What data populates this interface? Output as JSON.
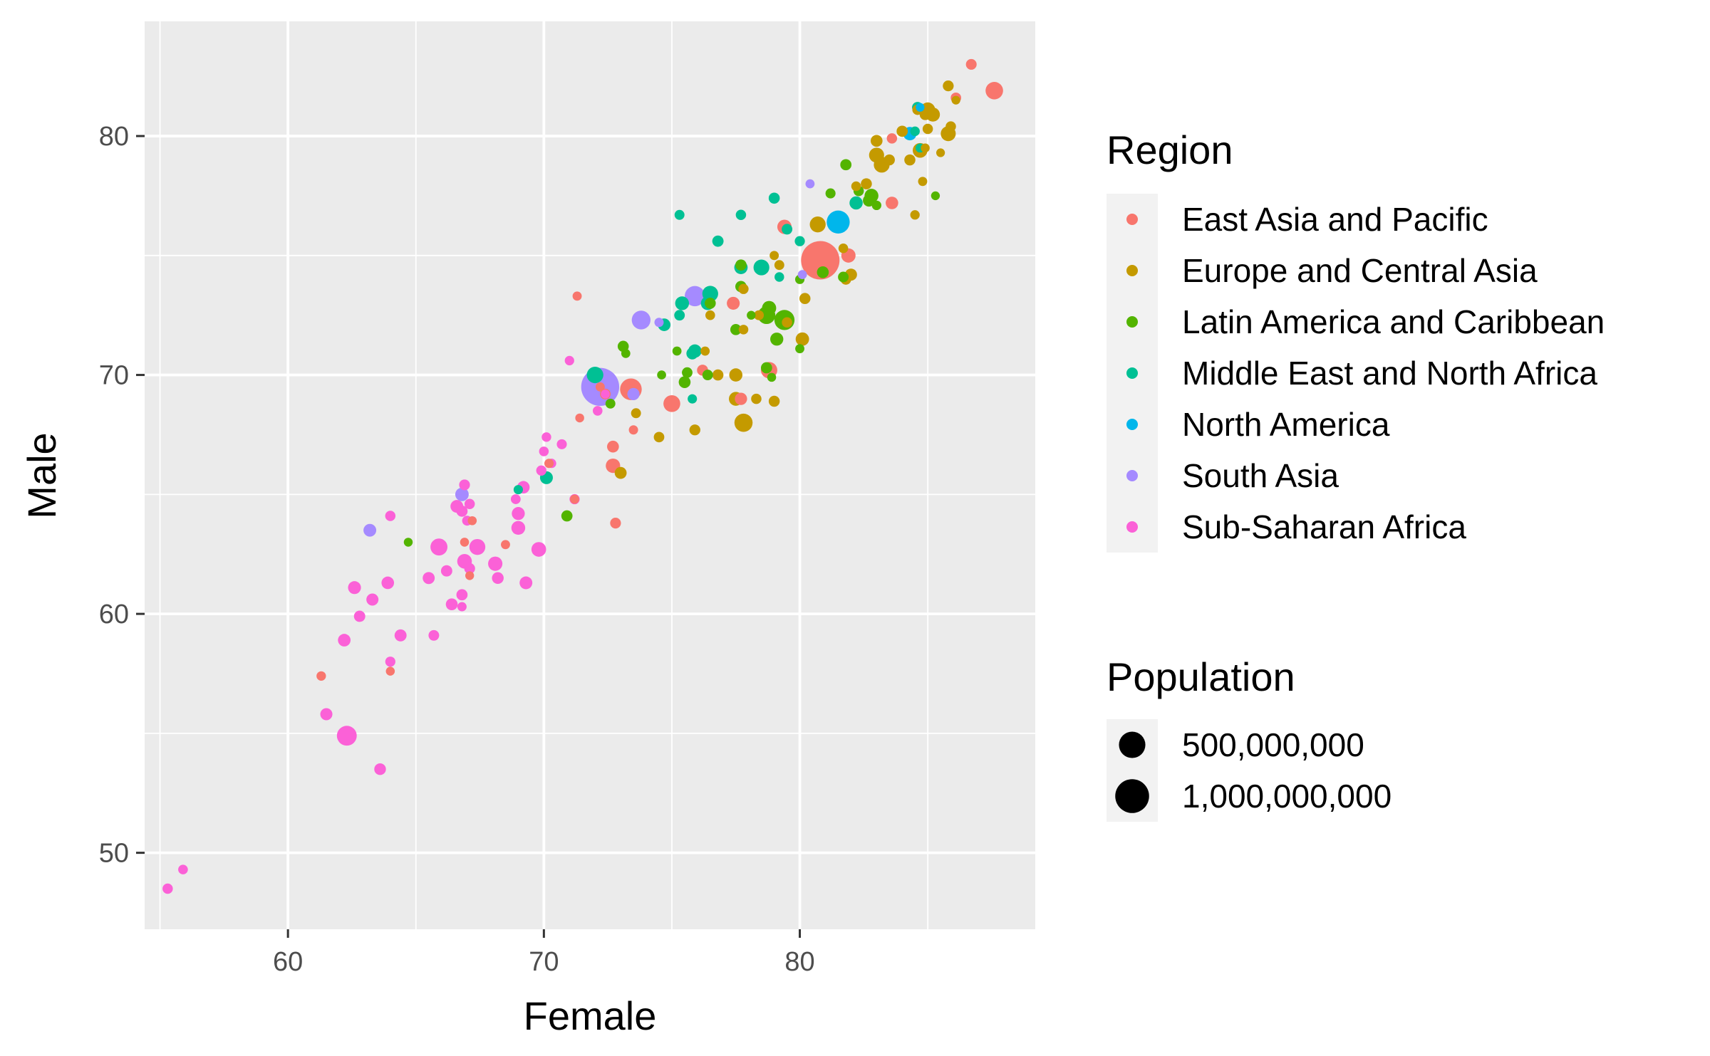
{
  "chart_data": {
    "type": "scatter",
    "title": "",
    "xlabel": "Female",
    "ylabel": "Male",
    "xlim": [
      54.4,
      89.2
    ],
    "ylim": [
      46.8,
      84.8
    ],
    "xticks": [
      60,
      70,
      80
    ],
    "yticks": [
      50,
      60,
      70,
      80
    ],
    "grid": true,
    "legend_position": "right",
    "color_legend": {
      "title": "Region",
      "entries": [
        {
          "name": "East Asia and Pacific",
          "color": "#F8766D"
        },
        {
          "name": "Europe and Central Asia",
          "color": "#C49A00"
        },
        {
          "name": "Latin America and Caribbean",
          "color": "#53B400"
        },
        {
          "name": "Middle East and North Africa",
          "color": "#00C094"
        },
        {
          "name": "North America",
          "color": "#00B6EB"
        },
        {
          "name": "South Asia",
          "color": "#A58AFF"
        },
        {
          "name": "Sub-Saharan Africa",
          "color": "#FB61D7"
        }
      ]
    },
    "size_legend": {
      "title": "Population",
      "entries": [
        {
          "label": "500,000,000",
          "value": 500000000
        },
        {
          "label": "1,000,000,000",
          "value": 1000000000
        }
      ]
    },
    "series": [
      {
        "region": "East Asia and Pacific",
        "points": [
          [
            80.8,
            74.8,
            1400000000
          ],
          [
            87.6,
            81.9,
            126000000
          ],
          [
            86.7,
            83.0,
            7500000
          ],
          [
            79.4,
            76.2,
            52000000
          ],
          [
            78.8,
            70.2,
            96000000
          ],
          [
            81.9,
            75.0,
            51000000
          ],
          [
            75.0,
            68.8,
            108000000
          ],
          [
            73.4,
            69.4,
            270000000
          ],
          [
            72.7,
            66.2,
            54000000
          ],
          [
            72.7,
            67.0,
            17000000
          ],
          [
            77.7,
            69.0,
            22000000
          ],
          [
            76.2,
            70.2,
            10000000
          ],
          [
            77.4,
            73.0,
            30000000
          ],
          [
            71.3,
            73.3,
            600000
          ],
          [
            72.4,
            69.2,
            7000000
          ],
          [
            71.2,
            64.8,
            500000
          ],
          [
            72.8,
            63.8,
            8000000
          ],
          [
            70.2,
            66.3,
            900000
          ],
          [
            68.5,
            62.9,
            600000
          ],
          [
            67.2,
            63.9,
            300000
          ],
          [
            73.5,
            67.7,
            800000
          ],
          [
            61.3,
            57.4,
            1300000
          ],
          [
            64.0,
            57.6,
            200000
          ],
          [
            66.9,
            63.0,
            300000
          ],
          [
            67.1,
            61.6,
            100000
          ],
          [
            71.4,
            68.2,
            200000
          ],
          [
            81.9,
            75.0,
            30000000
          ],
          [
            83.6,
            77.2,
            25000000
          ],
          [
            83.6,
            79.9,
            5000000
          ],
          [
            86.1,
            81.6,
            5700000
          ],
          [
            72.2,
            69.5,
            700000
          ]
        ]
      },
      {
        "region": "Europe and Central Asia",
        "points": [
          [
            85.2,
            80.9,
            47000000
          ],
          [
            85.8,
            80.1,
            65000000
          ],
          [
            84.7,
            79.4,
            60000000
          ],
          [
            83.0,
            79.2,
            66000000
          ],
          [
            83.2,
            78.8,
            83000000
          ],
          [
            80.1,
            71.5,
            37000000
          ],
          [
            80.7,
            76.3,
            84000000
          ],
          [
            77.8,
            68.0,
            145000000
          ],
          [
            77.5,
            69.0,
            44000000
          ],
          [
            73.0,
            65.9,
            18000000
          ],
          [
            75.9,
            67.7,
            9000000
          ],
          [
            74.5,
            67.4,
            6000000
          ],
          [
            78.3,
            69.0,
            5000000
          ],
          [
            79.0,
            68.9,
            9500000
          ],
          [
            84.9,
            80.9,
            10000000
          ],
          [
            85.8,
            82.1,
            8500000
          ],
          [
            85.9,
            80.4,
            5000000
          ],
          [
            84.6,
            81.1,
            5400000
          ],
          [
            84.0,
            80.2,
            11000000
          ],
          [
            84.3,
            79.0,
            10000000
          ],
          [
            83.5,
            79.0,
            9000000
          ],
          [
            83.0,
            79.8,
            17000000
          ],
          [
            82.6,
            78.0,
            10000000
          ],
          [
            82.2,
            77.9,
            2000000
          ],
          [
            81.7,
            75.3,
            2000000
          ],
          [
            82.0,
            74.2,
            19000000
          ],
          [
            81.8,
            74.0,
            7000000
          ],
          [
            80.2,
            73.2,
            10000000
          ],
          [
            79.2,
            74.6,
            2800000
          ],
          [
            78.4,
            72.5,
            3000000
          ],
          [
            79.5,
            72.2,
            5000000
          ],
          [
            77.5,
            70.0,
            34000000
          ],
          [
            76.8,
            70.0,
            10000000
          ],
          [
            76.5,
            72.5,
            2000000
          ],
          [
            76.3,
            71.0,
            600000
          ],
          [
            73.6,
            68.4,
            3000000
          ],
          [
            77.8,
            73.6,
            4000000
          ],
          [
            84.9,
            79.5,
            300000
          ],
          [
            86.1,
            81.5,
            39000
          ],
          [
            85.0,
            80.3,
            4900000
          ],
          [
            84.8,
            78.1,
            600000
          ],
          [
            84.5,
            76.7,
            1300000
          ],
          [
            85.0,
            81.1,
            60000000
          ],
          [
            85.5,
            79.3,
            38000
          ],
          [
            77.8,
            71.9,
            1800000
          ],
          [
            79.0,
            75.0,
            600000
          ]
        ]
      },
      {
        "region": "Latin America and Caribbean",
        "points": [
          [
            79.4,
            72.3,
            210000000
          ],
          [
            78.7,
            72.5,
            128000000
          ],
          [
            82.8,
            77.5,
            45000000
          ],
          [
            78.8,
            72.8,
            50000000
          ],
          [
            79.1,
            71.5,
            32000000
          ],
          [
            82.7,
            77.3,
            19000000
          ],
          [
            80.9,
            74.3,
            17000000
          ],
          [
            77.7,
            74.6,
            11000000
          ],
          [
            81.8,
            78.8,
            11000000
          ],
          [
            77.7,
            73.7,
            12000000
          ],
          [
            77.5,
            71.9,
            10000000
          ],
          [
            76.5,
            73.0,
            10000000
          ],
          [
            76.4,
            70.0,
            6500000
          ],
          [
            81.7,
            74.1,
            7000000
          ],
          [
            81.2,
            77.6,
            3500000
          ],
          [
            82.3,
            77.7,
            5000000
          ],
          [
            73.1,
            71.2,
            10000000
          ],
          [
            75.5,
            69.7,
            17000000
          ],
          [
            72.6,
            68.8,
            2800000
          ],
          [
            75.6,
            70.1,
            6500000
          ],
          [
            74.6,
            70.0,
            300000
          ],
          [
            75.2,
            71.0,
            500000
          ],
          [
            73.2,
            70.9,
            400000
          ],
          [
            78.1,
            72.5,
            100000
          ],
          [
            78.7,
            70.3,
            11000000
          ],
          [
            80.0,
            71.1,
            600000
          ],
          [
            70.9,
            64.1,
            11000000
          ],
          [
            85.3,
            77.5,
            100000
          ],
          [
            78.9,
            69.9,
            200000
          ],
          [
            64.7,
            63.0,
            200000
          ],
          [
            83.0,
            77.1,
            1400000
          ],
          [
            80.0,
            74.0,
            1000000
          ]
        ]
      },
      {
        "region": "Middle East and North Africa",
        "points": [
          [
            78.5,
            74.5,
            82000000
          ],
          [
            76.5,
            73.4,
            83000000
          ],
          [
            76.4,
            73.0,
            40000000
          ],
          [
            72.0,
            70.0,
            100000000
          ],
          [
            75.4,
            73.0,
            44000000
          ],
          [
            77.7,
            74.5,
            36000000
          ],
          [
            75.9,
            71.0,
            36000000
          ],
          [
            74.7,
            72.1,
            26000000
          ],
          [
            82.2,
            77.2,
            34000000
          ],
          [
            84.6,
            81.2,
            9000000
          ],
          [
            76.8,
            75.6,
            12000000
          ],
          [
            79.5,
            76.1,
            7000000
          ],
          [
            79.0,
            77.4,
            10000000
          ],
          [
            80.0,
            75.6,
            4000000
          ],
          [
            75.3,
            72.5,
            6500000
          ],
          [
            75.8,
            70.9,
            17000000
          ],
          [
            70.1,
            65.7,
            29000000
          ],
          [
            77.7,
            76.7,
            5000000
          ],
          [
            79.2,
            74.1,
            1700000
          ],
          [
            75.3,
            76.7,
            3000000
          ],
          [
            84.7,
            79.5,
            400000
          ],
          [
            75.8,
            69.0,
            1000000
          ],
          [
            69.0,
            65.2,
            1000000
          ],
          [
            84.5,
            80.2,
            1800000
          ]
        ]
      },
      {
        "region": "North America",
        "points": [
          [
            81.5,
            76.4,
            328000000
          ],
          [
            84.3,
            80.1,
            37000000
          ],
          [
            84.7,
            81.2,
            60000
          ]
        ]
      },
      {
        "region": "South Asia",
        "points": [
          [
            72.2,
            69.5,
            1360000000
          ],
          [
            75.9,
            73.3,
            216000000
          ],
          [
            73.8,
            72.3,
            163000000
          ],
          [
            66.8,
            65.0,
            38000000
          ],
          [
            73.5,
            69.2,
            21000000
          ],
          [
            80.4,
            78.0,
            500000
          ],
          [
            74.5,
            72.2,
            760000
          ],
          [
            63.2,
            63.5,
            28000000
          ],
          [
            80.1,
            74.2,
            500000
          ]
        ]
      },
      {
        "region": "Sub-Saharan Africa",
        "points": [
          [
            55.3,
            48.5,
            5000000
          ],
          [
            55.9,
            49.3,
            2000000
          ],
          [
            61.5,
            55.8,
            20000000
          ],
          [
            62.3,
            54.9,
            200000000
          ],
          [
            63.6,
            53.5,
            15000000
          ],
          [
            62.2,
            58.9,
            26000000
          ],
          [
            64.0,
            58.0,
            4000000
          ],
          [
            64.4,
            59.1,
            19000000
          ],
          [
            65.7,
            59.1,
            7000000
          ],
          [
            62.8,
            59.9,
            12000000
          ],
          [
            63.3,
            60.6,
            20000000
          ],
          [
            62.6,
            61.1,
            30000000
          ],
          [
            63.9,
            61.3,
            25000000
          ],
          [
            65.5,
            61.5,
            19000000
          ],
          [
            66.2,
            61.8,
            12000000
          ],
          [
            66.4,
            60.4,
            17000000
          ],
          [
            66.8,
            60.8,
            11000000
          ],
          [
            66.9,
            62.2,
            58000000
          ],
          [
            67.1,
            61.9,
            8000000
          ],
          [
            67.4,
            62.8,
            86000000
          ],
          [
            65.9,
            62.8,
            112000000
          ],
          [
            68.1,
            62.1,
            52000000
          ],
          [
            68.2,
            61.5,
            16000000
          ],
          [
            69.3,
            61.3,
            28000000
          ],
          [
            69.0,
            63.6,
            44000000
          ],
          [
            69.0,
            64.2,
            31000000
          ],
          [
            69.2,
            65.3,
            24000000
          ],
          [
            69.8,
            62.7,
            59000000
          ],
          [
            66.8,
            64.3,
            11000000
          ],
          [
            66.6,
            64.5,
            28000000
          ],
          [
            67.1,
            64.6,
            5000000
          ],
          [
            66.9,
            65.4,
            8000000
          ],
          [
            67.0,
            63.9,
            3000000
          ],
          [
            68.9,
            64.8,
            2500000
          ],
          [
            70.0,
            66.8,
            2000000
          ],
          [
            70.7,
            67.1,
            3500000
          ],
          [
            70.1,
            67.4,
            1500000
          ],
          [
            71.2,
            64.8,
            4000000
          ],
          [
            71.0,
            70.6,
            1300000
          ],
          [
            72.4,
            69.2,
            200000
          ],
          [
            72.1,
            68.5,
            2000000
          ],
          [
            70.3,
            66.3,
            1000000
          ],
          [
            69.9,
            66.0,
            4500000
          ],
          [
            64.0,
            64.1,
            5000000
          ],
          [
            66.8,
            60.3,
            800000
          ]
        ]
      }
    ]
  }
}
